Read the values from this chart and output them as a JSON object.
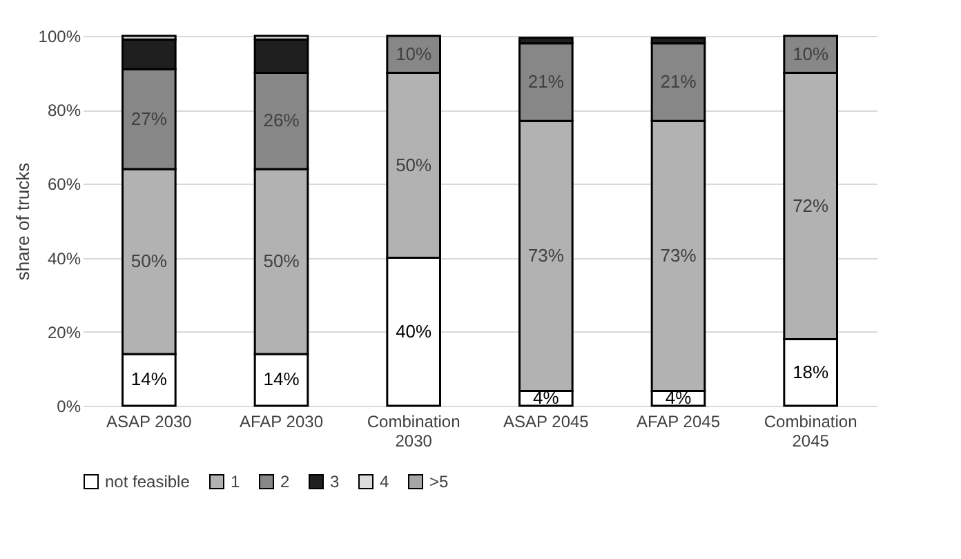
{
  "chart_data": {
    "type": "bar",
    "stacked": true,
    "ylabel": "share of trucks",
    "categories": [
      "ASAP 2030",
      "AFAP 2030",
      "Combination 2030",
      "ASAP 2045",
      "AFAP 2045",
      "Combination 2045"
    ],
    "series": [
      {
        "name": "not feasible",
        "color": "#ffffff",
        "values": [
          14,
          14,
          40,
          4,
          4,
          18
        ],
        "value_labels": [
          "14%",
          "14%",
          "40%",
          "4%",
          "4%",
          "18%"
        ]
      },
      {
        "name": "1",
        "color": "#b2b2b2",
        "values": [
          50,
          50,
          50,
          73,
          73,
          72
        ],
        "value_labels": [
          "50%",
          "50%",
          "50%",
          "73%",
          "73%",
          "72%"
        ]
      },
      {
        "name": "2",
        "color": "#878787",
        "values": [
          27,
          26,
          10,
          21,
          21,
          10
        ],
        "value_labels": [
          "27%",
          "26%",
          "10%",
          "21%",
          "21%",
          "10%"
        ]
      },
      {
        "name": "3",
        "color": "#1f1f1f",
        "values": [
          8,
          9,
          null,
          1.5,
          1.5,
          null
        ]
      },
      {
        "name": "4",
        "color": "#dcdcdc",
        "values": [
          1,
          1,
          null,
          null,
          null,
          null
        ]
      },
      {
        "name": ">5",
        "color": "#a6a6a6",
        "values": [
          null,
          null,
          null,
          null,
          null,
          null
        ]
      }
    ],
    "ylim": [
      0,
      100
    ],
    "yticks": [
      {
        "value": 0,
        "label": "0%"
      },
      {
        "value": 20,
        "label": "20%"
      },
      {
        "value": 40,
        "label": "40%"
      },
      {
        "value": 60,
        "label": "60%"
      },
      {
        "value": 80,
        "label": "80%"
      },
      {
        "value": 100,
        "label": "100%"
      }
    ],
    "grid": "y",
    "legend": "bottom"
  }
}
